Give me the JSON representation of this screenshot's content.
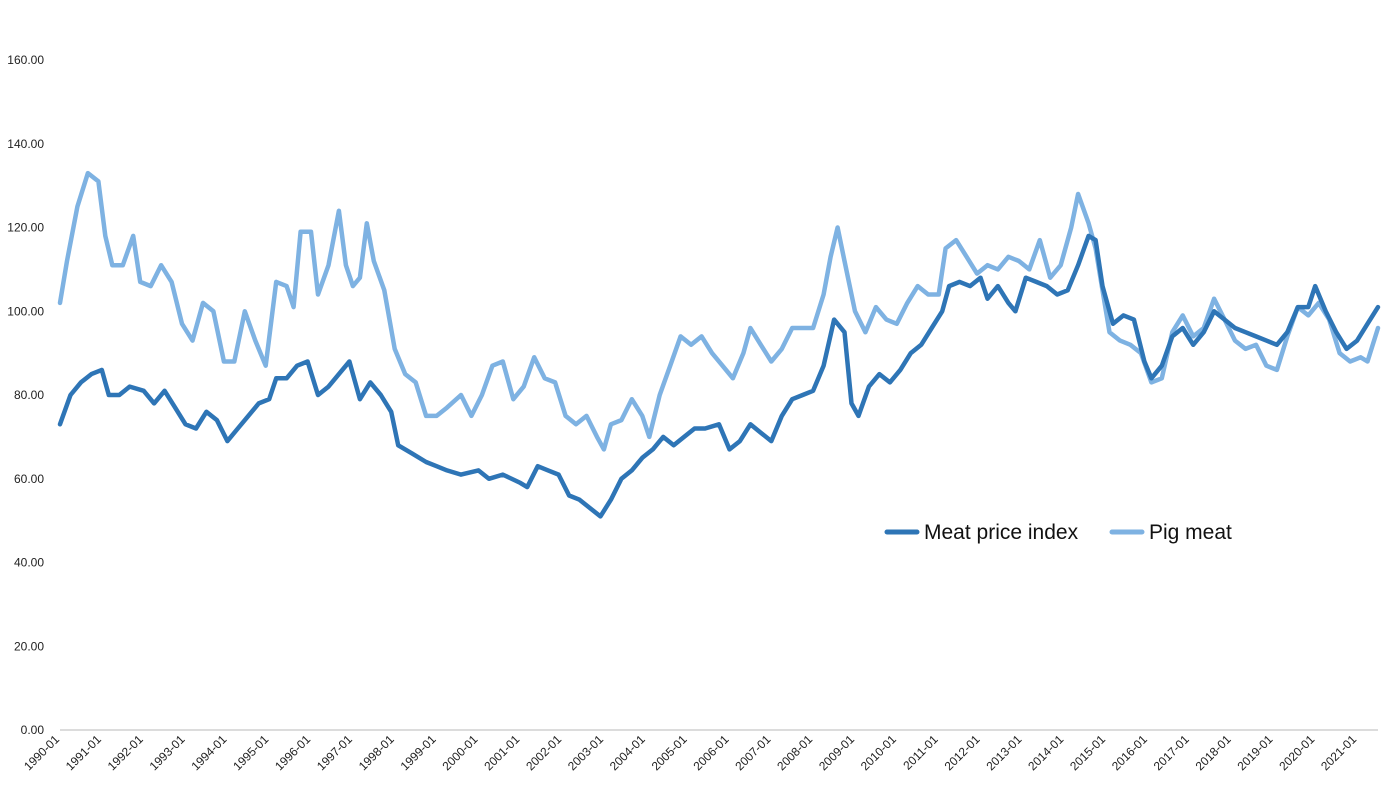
{
  "chart_data": {
    "type": "line",
    "title": "",
    "xlabel": "",
    "ylabel": "",
    "ylim": [
      0,
      160
    ],
    "yticks": [
      "0.00",
      "20.00",
      "40.00",
      "60.00",
      "80.00",
      "100.00",
      "120.00",
      "140.00",
      "160.00"
    ],
    "xticks": [
      "1990-01",
      "1991-01",
      "1992-01",
      "1993-01",
      "1994-01",
      "1995-01",
      "1996-01",
      "1997-01",
      "1998-01",
      "1999-01",
      "2000-01",
      "2001-01",
      "2002-01",
      "2003-01",
      "2004-01",
      "2005-01",
      "2006-01",
      "2007-01",
      "2008-01",
      "2009-01",
      "2010-01",
      "2011-01",
      "2012-01",
      "2013-01",
      "2014-01",
      "2015-01",
      "2016-01",
      "2017-01",
      "2018-01",
      "2019-01",
      "2020-01",
      "2021-01"
    ],
    "x_range": [
      "1990-01",
      "2021-07"
    ],
    "grid": false,
    "legend_position": "center-right",
    "series": [
      {
        "name": "Meat price index",
        "color": "#2e75b6",
        "points": [
          [
            "1990-01",
            73
          ],
          [
            "1990-04",
            80
          ],
          [
            "1990-07",
            83
          ],
          [
            "1990-10",
            85
          ],
          [
            "1991-01",
            86
          ],
          [
            "1991-03",
            80
          ],
          [
            "1991-06",
            80
          ],
          [
            "1991-09",
            82
          ],
          [
            "1992-01",
            81
          ],
          [
            "1992-04",
            78
          ],
          [
            "1992-07",
            81
          ],
          [
            "1992-10",
            77
          ],
          [
            "1993-01",
            73
          ],
          [
            "1993-04",
            72
          ],
          [
            "1993-07",
            76
          ],
          [
            "1993-10",
            74
          ],
          [
            "1994-01",
            69
          ],
          [
            "1994-04",
            72
          ],
          [
            "1994-07",
            75
          ],
          [
            "1994-10",
            78
          ],
          [
            "1995-01",
            79
          ],
          [
            "1995-03",
            84
          ],
          [
            "1995-06",
            84
          ],
          [
            "1995-09",
            87
          ],
          [
            "1995-12",
            88
          ],
          [
            "1996-03",
            80
          ],
          [
            "1996-06",
            82
          ],
          [
            "1996-09",
            85
          ],
          [
            "1996-12",
            88
          ],
          [
            "1997-03",
            79
          ],
          [
            "1997-06",
            83
          ],
          [
            "1997-09",
            80
          ],
          [
            "1997-12",
            76
          ],
          [
            "1998-02",
            68
          ],
          [
            "1998-06",
            66
          ],
          [
            "1998-10",
            64
          ],
          [
            "1999-01",
            63
          ],
          [
            "1999-04",
            62
          ],
          [
            "1999-08",
            61
          ],
          [
            "2000-01",
            62
          ],
          [
            "2000-04",
            60
          ],
          [
            "2000-08",
            61
          ],
          [
            "2001-01",
            59
          ],
          [
            "2001-03",
            58
          ],
          [
            "2001-06",
            63
          ],
          [
            "2001-09",
            62
          ],
          [
            "2001-12",
            61
          ],
          [
            "2002-03",
            56
          ],
          [
            "2002-06",
            55
          ],
          [
            "2002-09",
            53
          ],
          [
            "2002-12",
            51
          ],
          [
            "2003-03",
            55
          ],
          [
            "2003-06",
            60
          ],
          [
            "2003-09",
            62
          ],
          [
            "2003-12",
            65
          ],
          [
            "2004-03",
            67
          ],
          [
            "2004-06",
            70
          ],
          [
            "2004-09",
            68
          ],
          [
            "2004-12",
            70
          ],
          [
            "2005-03",
            72
          ],
          [
            "2005-06",
            72
          ],
          [
            "2005-10",
            73
          ],
          [
            "2006-01",
            67
          ],
          [
            "2006-04",
            69
          ],
          [
            "2006-07",
            73
          ],
          [
            "2006-10",
            71
          ],
          [
            "2007-01",
            69
          ],
          [
            "2007-04",
            75
          ],
          [
            "2007-07",
            79
          ],
          [
            "2007-10",
            80
          ],
          [
            "2008-01",
            81
          ],
          [
            "2008-04",
            87
          ],
          [
            "2008-07",
            98
          ],
          [
            "2008-10",
            95
          ],
          [
            "2008-12",
            78
          ],
          [
            "2009-02",
            75
          ],
          [
            "2009-05",
            82
          ],
          [
            "2009-08",
            85
          ],
          [
            "2009-11",
            83
          ],
          [
            "2010-02",
            86
          ],
          [
            "2010-05",
            90
          ],
          [
            "2010-08",
            92
          ],
          [
            "2010-11",
            96
          ],
          [
            "2011-02",
            100
          ],
          [
            "2011-04",
            106
          ],
          [
            "2011-07",
            107
          ],
          [
            "2011-10",
            106
          ],
          [
            "2012-01",
            108
          ],
          [
            "2012-03",
            103
          ],
          [
            "2012-06",
            106
          ],
          [
            "2012-09",
            102
          ],
          [
            "2012-11",
            100
          ],
          [
            "2013-02",
            108
          ],
          [
            "2013-05",
            107
          ],
          [
            "2013-08",
            106
          ],
          [
            "2013-11",
            104
          ],
          [
            "2014-02",
            105
          ],
          [
            "2014-05",
            111
          ],
          [
            "2014-08",
            118
          ],
          [
            "2014-10",
            117
          ],
          [
            "2014-12",
            106
          ],
          [
            "2015-03",
            97
          ],
          [
            "2015-06",
            99
          ],
          [
            "2015-09",
            98
          ],
          [
            "2015-12",
            88
          ],
          [
            "2016-02",
            84
          ],
          [
            "2016-05",
            87
          ],
          [
            "2016-08",
            94
          ],
          [
            "2016-11",
            96
          ],
          [
            "2017-02",
            92
          ],
          [
            "2017-05",
            95
          ],
          [
            "2017-08",
            100
          ],
          [
            "2017-11",
            98
          ],
          [
            "2018-02",
            96
          ],
          [
            "2018-05",
            95
          ],
          [
            "2018-08",
            94
          ],
          [
            "2018-11",
            93
          ],
          [
            "2019-02",
            92
          ],
          [
            "2019-05",
            95
          ],
          [
            "2019-08",
            101
          ],
          [
            "2019-11",
            101
          ],
          [
            "2020-01",
            106
          ],
          [
            "2020-04",
            100
          ],
          [
            "2020-07",
            95
          ],
          [
            "2020-10",
            91
          ],
          [
            "2021-01",
            93
          ],
          [
            "2021-04",
            97
          ],
          [
            "2021-07",
            101
          ]
        ]
      },
      {
        "name": "Pig meat",
        "color": "#7eb2e2",
        "points": [
          [
            "1990-01",
            102
          ],
          [
            "1990-03",
            112
          ],
          [
            "1990-06",
            125
          ],
          [
            "1990-09",
            133
          ],
          [
            "1990-12",
            131
          ],
          [
            "1991-02",
            118
          ],
          [
            "1991-04",
            111
          ],
          [
            "1991-07",
            111
          ],
          [
            "1991-10",
            118
          ],
          [
            "1991-12",
            107
          ],
          [
            "1992-03",
            106
          ],
          [
            "1992-06",
            111
          ],
          [
            "1992-09",
            107
          ],
          [
            "1992-12",
            97
          ],
          [
            "1993-03",
            93
          ],
          [
            "1993-06",
            102
          ],
          [
            "1993-09",
            100
          ],
          [
            "1993-12",
            88
          ],
          [
            "1994-03",
            88
          ],
          [
            "1994-06",
            100
          ],
          [
            "1994-09",
            93
          ],
          [
            "1994-12",
            87
          ],
          [
            "1995-03",
            107
          ],
          [
            "1995-06",
            106
          ],
          [
            "1995-08",
            101
          ],
          [
            "1995-10",
            119
          ],
          [
            "1996-01",
            119
          ],
          [
            "1996-03",
            104
          ],
          [
            "1996-06",
            111
          ],
          [
            "1996-09",
            124
          ],
          [
            "1996-11",
            111
          ],
          [
            "1997-01",
            106
          ],
          [
            "1997-03",
            108
          ],
          [
            "1997-05",
            121
          ],
          [
            "1997-07",
            112
          ],
          [
            "1997-10",
            105
          ],
          [
            "1998-01",
            91
          ],
          [
            "1998-04",
            85
          ],
          [
            "1998-07",
            83
          ],
          [
            "1998-10",
            75
          ],
          [
            "1999-01",
            75
          ],
          [
            "1999-04",
            77
          ],
          [
            "1999-08",
            80
          ],
          [
            "1999-11",
            75
          ],
          [
            "2000-02",
            80
          ],
          [
            "2000-05",
            87
          ],
          [
            "2000-08",
            88
          ],
          [
            "2000-11",
            79
          ],
          [
            "2001-02",
            82
          ],
          [
            "2001-05",
            89
          ],
          [
            "2001-08",
            84
          ],
          [
            "2001-11",
            83
          ],
          [
            "2002-02",
            75
          ],
          [
            "2002-05",
            73
          ],
          [
            "2002-08",
            75
          ],
          [
            "2002-11",
            70
          ],
          [
            "2003-01",
            67
          ],
          [
            "2003-03",
            73
          ],
          [
            "2003-06",
            74
          ],
          [
            "2003-09",
            79
          ],
          [
            "2003-12",
            75
          ],
          [
            "2004-02",
            70
          ],
          [
            "2004-05",
            80
          ],
          [
            "2004-08",
            87
          ],
          [
            "2004-11",
            94
          ],
          [
            "2005-02",
            92
          ],
          [
            "2005-05",
            94
          ],
          [
            "2005-08",
            90
          ],
          [
            "2005-11",
            87
          ],
          [
            "2006-02",
            84
          ],
          [
            "2006-05",
            90
          ],
          [
            "2006-07",
            96
          ],
          [
            "2006-10",
            92
          ],
          [
            "2007-01",
            88
          ],
          [
            "2007-04",
            91
          ],
          [
            "2007-07",
            96
          ],
          [
            "2007-10",
            96
          ],
          [
            "2008-01",
            96
          ],
          [
            "2008-04",
            104
          ],
          [
            "2008-06",
            113
          ],
          [
            "2008-08",
            120
          ],
          [
            "2008-10",
            112
          ],
          [
            "2009-01",
            100
          ],
          [
            "2009-04",
            95
          ],
          [
            "2009-07",
            101
          ],
          [
            "2009-10",
            98
          ],
          [
            "2010-01",
            97
          ],
          [
            "2010-04",
            102
          ],
          [
            "2010-07",
            106
          ],
          [
            "2010-10",
            104
          ],
          [
            "2011-01",
            104
          ],
          [
            "2011-03",
            115
          ],
          [
            "2011-06",
            117
          ],
          [
            "2011-09",
            113
          ],
          [
            "2011-12",
            109
          ],
          [
            "2012-03",
            111
          ],
          [
            "2012-06",
            110
          ],
          [
            "2012-09",
            113
          ],
          [
            "2012-12",
            112
          ],
          [
            "2013-03",
            110
          ],
          [
            "2013-06",
            117
          ],
          [
            "2013-09",
            108
          ],
          [
            "2013-12",
            111
          ],
          [
            "2014-03",
            120
          ],
          [
            "2014-05",
            128
          ],
          [
            "2014-08",
            121
          ],
          [
            "2014-10",
            115
          ],
          [
            "2014-12",
            105
          ],
          [
            "2015-02",
            95
          ],
          [
            "2015-05",
            93
          ],
          [
            "2015-08",
            92
          ],
          [
            "2015-11",
            90
          ],
          [
            "2016-02",
            83
          ],
          [
            "2016-05",
            84
          ],
          [
            "2016-08",
            95
          ],
          [
            "2016-11",
            99
          ],
          [
            "2017-02",
            94
          ],
          [
            "2017-05",
            96
          ],
          [
            "2017-08",
            103
          ],
          [
            "2017-11",
            98
          ],
          [
            "2018-02",
            93
          ],
          [
            "2018-05",
            91
          ],
          [
            "2018-08",
            92
          ],
          [
            "2018-11",
            87
          ],
          [
            "2019-02",
            86
          ],
          [
            "2019-05",
            94
          ],
          [
            "2019-08",
            101
          ],
          [
            "2019-11",
            99
          ],
          [
            "2020-02",
            102
          ],
          [
            "2020-05",
            98
          ],
          [
            "2020-08",
            90
          ],
          [
            "2020-11",
            88
          ],
          [
            "2021-02",
            89
          ],
          [
            "2021-04",
            88
          ],
          [
            "2021-07",
            96
          ]
        ]
      }
    ]
  }
}
